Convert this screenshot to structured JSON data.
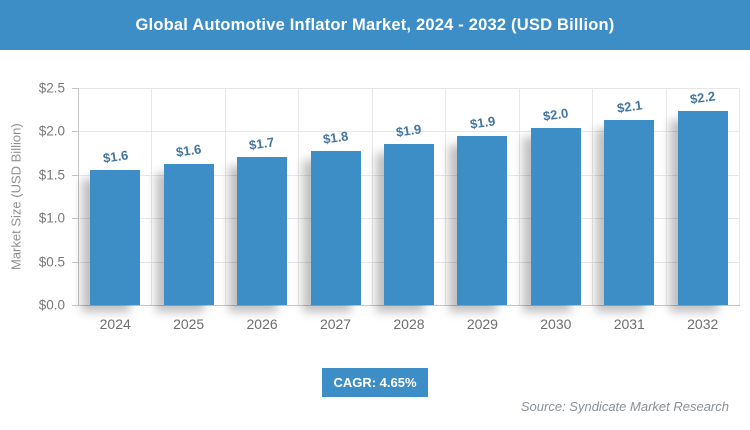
{
  "header": {
    "title": "Global Automotive Inflator Market, 2024 - 2032 (USD Billion)",
    "bg_color": "#3D8EC6",
    "text_color": "#ffffff"
  },
  "chart_data": {
    "type": "bar",
    "title": "Global Automotive Inflator Market, 2024 - 2032 (USD Billion)",
    "categories": [
      "2024",
      "2025",
      "2026",
      "2027",
      "2028",
      "2029",
      "2030",
      "2031",
      "2032"
    ],
    "values": [
      1.55,
      1.62,
      1.7,
      1.78,
      1.86,
      1.95,
      2.04,
      2.13,
      2.23
    ],
    "bar_labels": [
      "$1.6",
      "$1.6",
      "$1.7",
      "$1.8",
      "$1.9",
      "$1.9",
      "$2.0",
      "$2.1",
      "$2.2"
    ],
    "xlabel": "",
    "ylabel": "Market Size (USD Billion)",
    "ylim": [
      0,
      2.5
    ],
    "y_ticks": [
      "$0.0",
      "$0.5",
      "$1.0",
      "$1.5",
      "$2.0",
      "$2.5"
    ],
    "y_tick_values": [
      0,
      0.5,
      1.0,
      1.5,
      2.0,
      2.5
    ],
    "grid": true,
    "legend": false,
    "bar_color": "#3D8EC6",
    "bar_label_color": "#44759D"
  },
  "footer": {
    "cagr_label": "CAGR: 4.65%",
    "source": "Source: Syndicate Market Research"
  }
}
